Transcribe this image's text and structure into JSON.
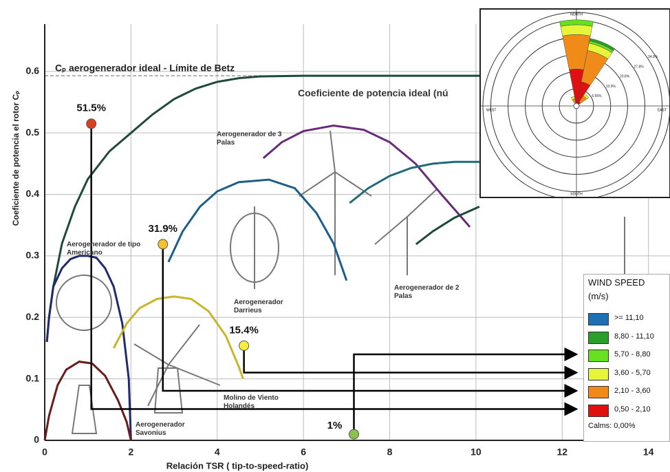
{
  "chart_data": [
    {
      "type": "line",
      "x_label": "Relación TSR ( tip-to-speed-ratio)",
      "y_label": "Coeficiente de potencia el rotor Cₚ",
      "xlim": [
        0,
        14.5
      ],
      "ylim": [
        0,
        0.677
      ],
      "xticks": [
        0,
        2,
        4,
        6,
        8,
        10,
        12,
        14
      ],
      "yticks": [
        0,
        0.1,
        0.2,
        0.3,
        0.4,
        0.5,
        0.6
      ],
      "grid": true,
      "betz": {
        "label": "Cₚ aerogenerador ideal - Límite de Betz",
        "value": 0.593
      },
      "series": [
        {
          "name": "Coeficiente de potencia ideal (nú",
          "color": "#1e4a3a",
          "x": [
            0.05,
            0.1,
            0.2,
            0.4,
            0.7,
            1,
            1.5,
            2,
            2.5,
            3,
            3.5,
            4,
            4.5,
            5,
            6,
            8,
            10,
            12,
            14.5
          ],
          "values": [
            0.16,
            0.2,
            0.25,
            0.32,
            0.38,
            0.425,
            0.47,
            0.5,
            0.53,
            0.555,
            0.572,
            0.583,
            0.589,
            0.592,
            0.593,
            0.593,
            0.593,
            0.593,
            0.593
          ]
        },
        {
          "name": "Aerogenerador de tipo Americano",
          "color": "#1f2a6b",
          "x": [
            0.05,
            0.1,
            0.2,
            0.4,
            0.6,
            0.8,
            1,
            1.2,
            1.4,
            1.6,
            1.8,
            1.95,
            2
          ],
          "values": [
            0.16,
            0.2,
            0.25,
            0.28,
            0.295,
            0.3,
            0.3,
            0.297,
            0.28,
            0.25,
            0.19,
            0.1,
            0
          ]
        },
        {
          "name": "Aerogenerador Savonius",
          "color": "#6b1a1a",
          "x": [
            0,
            0.1,
            0.3,
            0.5,
            0.8,
            1.1,
            1.4,
            1.7,
            1.9,
            2
          ],
          "values": [
            0,
            0.04,
            0.09,
            0.115,
            0.128,
            0.125,
            0.105,
            0.065,
            0.03,
            0
          ]
        },
        {
          "name": "Molino de Viento Holandés",
          "color": "#c9b52a",
          "x": [
            1.6,
            1.9,
            2.2,
            2.6,
            3,
            3.4,
            3.8,
            4.2,
            4.5,
            4.6
          ],
          "values": [
            0.15,
            0.19,
            0.215,
            0.23,
            0.234,
            0.23,
            0.21,
            0.17,
            0.12,
            0.1
          ]
        },
        {
          "name": "Aerogenerador Darrieus",
          "color": "#1d5d8a",
          "x": [
            2.87,
            3.2,
            3.6,
            4,
            4.5,
            5.2,
            5.8,
            6.3,
            6.7,
            7.0
          ],
          "values": [
            0.29,
            0.34,
            0.38,
            0.405,
            0.42,
            0.424,
            0.41,
            0.37,
            0.32,
            0.26
          ]
        },
        {
          "name": "Aerogenerador de 3 Palas",
          "color": "#6a2a7a",
          "x": [
            5.07,
            5.5,
            6,
            6.7,
            7.4,
            8,
            8.6,
            9.2,
            9.86
          ],
          "values": [
            0.459,
            0.485,
            0.503,
            0.512,
            0.505,
            0.485,
            0.45,
            0.4,
            0.347
          ]
        },
        {
          "name": "Aerogenerador de 2 Palas",
          "color": "#1f6b7a",
          "x": [
            7.07,
            7.5,
            8,
            8.5,
            9,
            9.5,
            10.08
          ],
          "values": [
            0.386,
            0.41,
            0.43,
            0.443,
            0.45,
            0.453,
            0.453
          ]
        },
        {
          "color": "#1e4a3a",
          "x": [
            8.61,
            9,
            9.5,
            10.08
          ],
          "values": [
            0.319,
            0.34,
            0.362,
            0.38
          ]
        }
      ],
      "markers": {
        "x": [
          1.08,
          2.74,
          4.62,
          7.17
        ],
        "values": [
          0.515,
          0.319,
          0.154,
          0.01
        ],
        "value_labels": [
          "51.5%",
          "31.9%",
          "15.4%",
          "1%"
        ],
        "colors": [
          "#d8401f",
          "#f2c230",
          "#f5ee3a",
          "#8bc34a"
        ]
      }
    },
    {
      "type": "polar_bar",
      "direction_labels": {
        "north": "NORTH",
        "south": "SOUTH",
        "east": "EAST",
        "west": "WEST"
      },
      "directions": [
        337.5,
        0,
        22.5,
        45
      ],
      "rlim": [
        0,
        38
      ],
      "rticks": [
        {
          "value": 6.95,
          "label": "6.95%"
        },
        {
          "value": 13.9,
          "label": "13.9%"
        },
        {
          "value": 20.8,
          "label": "20.8%"
        },
        {
          "value": 27.8,
          "label": "27.8%"
        },
        {
          "value": 34.8,
          "label": "34.8%"
        }
      ],
      "legend_title": [
        "WIND SPEED",
        "(m/s)"
      ],
      "series": [
        {
          "name": ">= 11,10",
          "color": "#1f6fb5",
          "values": [
            0,
            0,
            0,
            0
          ]
        },
        {
          "name": "8,80 - 11,10",
          "color": "#2aa02a",
          "values": [
            0,
            0,
            1,
            0
          ]
        },
        {
          "name": "5,70 - 8,80",
          "color": "#66e020",
          "values": [
            0,
            2,
            1,
            0
          ]
        },
        {
          "name": "3,60 - 5,70",
          "color": "#e6f53a",
          "values": [
            1,
            4,
            3,
            1
          ]
        },
        {
          "name": "2,10 - 3,60",
          "color": "#f08a18",
          "values": [
            2,
            14,
            13,
            3
          ]
        },
        {
          "name": "0,50 - 2,10",
          "color": "#e01010",
          "values": [
            1,
            15,
            10,
            2
          ]
        }
      ],
      "calms": "Calms: 0,00%"
    }
  ]
}
